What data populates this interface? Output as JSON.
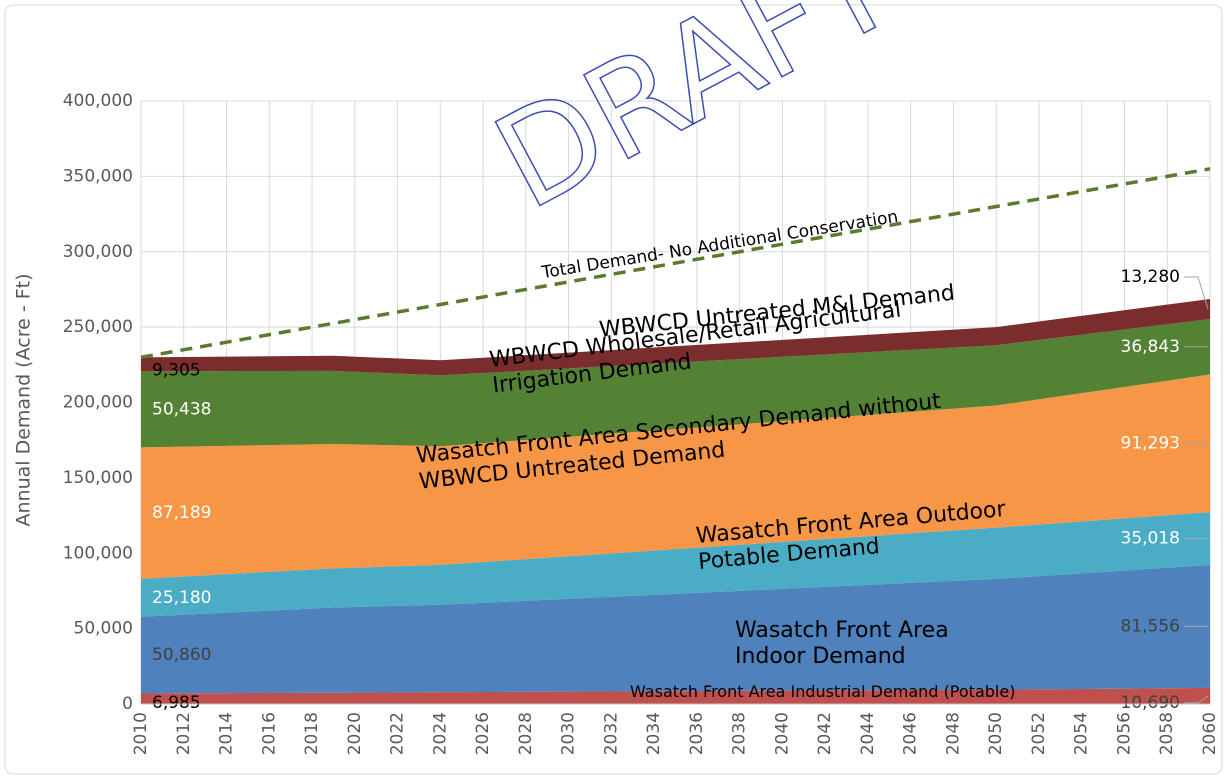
{
  "chart_data": {
    "type": "stacked_area",
    "watermark": "DRAFT",
    "y_label": "Annual Demand (Acre - Ft)",
    "x": [
      2010,
      2019,
      2024,
      2050,
      2060
    ],
    "xlim": [
      2010,
      2060
    ],
    "xticks": [
      2010,
      2012,
      2014,
      2016,
      2018,
      2020,
      2022,
      2024,
      2026,
      2028,
      2030,
      2032,
      2034,
      2036,
      2038,
      2040,
      2042,
      2044,
      2046,
      2048,
      2050,
      2052,
      2054,
      2056,
      2058,
      2060
    ],
    "ylim": [
      0,
      400000
    ],
    "yticks": [
      0,
      {
        "value": 50000,
        "label": "50,000"
      },
      {
        "value": 100000,
        "label": "100,000"
      },
      {
        "value": 150000,
        "label": "150,000"
      },
      {
        "value": 200000,
        "label": "200,000"
      },
      {
        "value": 250000,
        "label": "250,000"
      },
      {
        "value": 300000,
        "label": "300,000"
      },
      {
        "value": 350000,
        "label": "350,000"
      },
      {
        "value": 400000,
        "label": "400,000"
      }
    ],
    "grid": true,
    "series": [
      {
        "name": "Wasatch Front Area Industrial Demand (Potable)",
        "color": "#c0504d",
        "values": [
          6985,
          7500,
          7800,
          9500,
          10690
        ],
        "value_labels": [
          "6,985",
          null,
          null,
          null,
          "10,690"
        ]
      },
      {
        "name": "Wasatch Front Area Indoor Demand",
        "color": "#4f81bd",
        "values": [
          50860,
          56500,
          58000,
          73500,
          81556
        ],
        "value_labels": [
          "50,860",
          null,
          null,
          null,
          "81,556"
        ]
      },
      {
        "name": "Wasatch Front Area Outdoor Potable Demand",
        "color": "#4bacc6",
        "values": [
          25180,
          26000,
          26500,
          34000,
          35018
        ],
        "value_labels": [
          "25,180",
          null,
          null,
          null,
          "35,018"
        ]
      },
      {
        "name": "Wasatch Front Area Secondary Demand without WBWCD Untreated Demand",
        "color": "#f79646",
        "values": [
          87189,
          82500,
          78700,
          81000,
          91293
        ],
        "value_labels": [
          "87,189",
          null,
          null,
          null,
          "91,293"
        ]
      },
      {
        "name": "WBWCD Wholesale/Retail Agricultural Irrigation Demand",
        "color": "#548235",
        "values": [
          50438,
          48500,
          47000,
          40000,
          36843
        ],
        "value_labels": [
          "50,438",
          null,
          null,
          null,
          "36,843"
        ]
      },
      {
        "name": "WBWCD Untreated M&I Demand",
        "color": "#7b2c2c",
        "values": [
          9305,
          10000,
          10000,
          12000,
          13280
        ],
        "value_labels": [
          "9,305",
          null,
          null,
          null,
          "13,280"
        ]
      }
    ],
    "total_line": {
      "name": "Total Demand- No Additional Conservation",
      "color": "#5a7a30",
      "values": [
        230000,
        252500,
        265000,
        330000,
        355000
      ]
    }
  }
}
